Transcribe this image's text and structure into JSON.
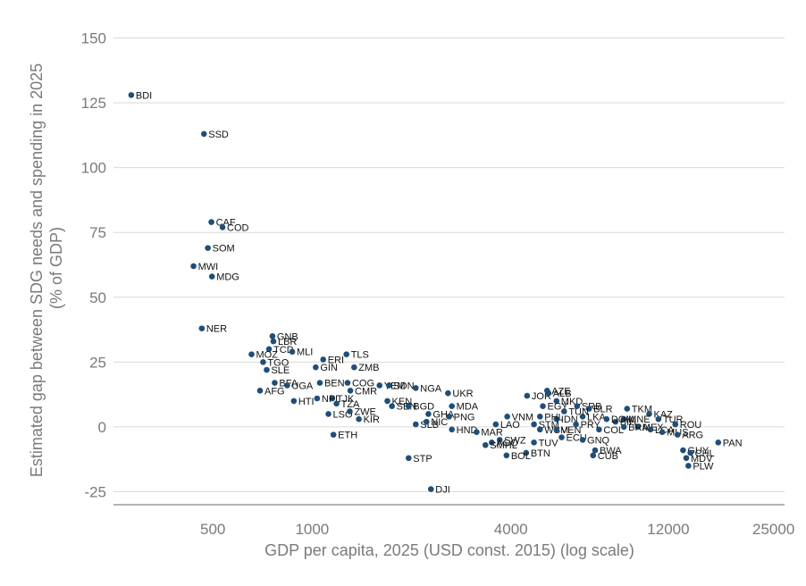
{
  "chart_data": {
    "type": "scatter",
    "x_scale": "log",
    "xlabel": "GDP per capita, 2025 (USD const. 2015) (log scale)",
    "ylabel_lines": [
      "Estimated gap between SDG needs and spending in 2025",
      "(% of GDP)"
    ],
    "xlim": [
      250,
      27000
    ],
    "ylim": [
      -30,
      155
    ],
    "x_ticks": [
      500,
      1000,
      4000,
      12000,
      25000
    ],
    "x_tick_labels": [
      "500",
      "1000",
      "4000",
      "12000",
      "25000"
    ],
    "y_ticks": [
      -25,
      0,
      25,
      50,
      75,
      100,
      125,
      150
    ],
    "y_tick_labels": [
      "-25",
      "0",
      "25",
      "50",
      "75",
      "100",
      "125",
      "150"
    ],
    "grid": "horizontal",
    "marker_color": "#1f4e79",
    "points": [
      {
        "label": "BDI",
        "x": 283,
        "y": 128
      },
      {
        "label": "SSD",
        "x": 470,
        "y": 113
      },
      {
        "label": "CAF",
        "x": 495,
        "y": 79
      },
      {
        "label": "COD",
        "x": 535,
        "y": 77
      },
      {
        "label": "SOM",
        "x": 483,
        "y": 69
      },
      {
        "label": "MWI",
        "x": 437,
        "y": 62
      },
      {
        "label": "MDG",
        "x": 497,
        "y": 58
      },
      {
        "label": "NER",
        "x": 463,
        "y": 38
      },
      {
        "label": "GNB",
        "x": 758,
        "y": 35
      },
      {
        "label": "LBR",
        "x": 763,
        "y": 33
      },
      {
        "label": "TCD",
        "x": 740,
        "y": 30
      },
      {
        "label": "MLI",
        "x": 870,
        "y": 29
      },
      {
        "label": "MOZ",
        "x": 655,
        "y": 28
      },
      {
        "label": "TGO",
        "x": 710,
        "y": 25
      },
      {
        "label": "ERI",
        "x": 1080,
        "y": 26
      },
      {
        "label": "TLS",
        "x": 1270,
        "y": 28
      },
      {
        "label": "GIN",
        "x": 1025,
        "y": 23
      },
      {
        "label": "SLE",
        "x": 728,
        "y": 22
      },
      {
        "label": "ZMB",
        "x": 1340,
        "y": 23
      },
      {
        "label": "BFA",
        "x": 770,
        "y": 17
      },
      {
        "label": "UGA",
        "x": 840,
        "y": 16
      },
      {
        "label": "BEN",
        "x": 1055,
        "y": 17
      },
      {
        "label": "COG",
        "x": 1280,
        "y": 17
      },
      {
        "label": "YEM",
        "x": 1600,
        "y": 16
      },
      {
        "label": "SDN",
        "x": 1710,
        "y": 16
      },
      {
        "label": "AFG",
        "x": 695,
        "y": 14
      },
      {
        "label": "CMR",
        "x": 1305,
        "y": 14
      },
      {
        "label": "TJK",
        "x": 1150,
        "y": 11
      },
      {
        "label": "HTI",
        "x": 880,
        "y": 10
      },
      {
        "label": "NPL",
        "x": 1035,
        "y": 11
      },
      {
        "label": "TZA",
        "x": 1185,
        "y": 9
      },
      {
        "label": "KEN",
        "x": 1690,
        "y": 10
      },
      {
        "label": "NGA",
        "x": 2060,
        "y": 15
      },
      {
        "label": "UKR",
        "x": 2580,
        "y": 13
      },
      {
        "label": "LSO",
        "x": 1120,
        "y": 5
      },
      {
        "label": "ZWE",
        "x": 1300,
        "y": 6
      },
      {
        "label": "KIR",
        "x": 1385,
        "y": 3
      },
      {
        "label": "SEN",
        "x": 1745,
        "y": 8
      },
      {
        "label": "BGD",
        "x": 1960,
        "y": 8
      },
      {
        "label": "MDA",
        "x": 2650,
        "y": 8
      },
      {
        "label": "GHA",
        "x": 2250,
        "y": 5
      },
      {
        "label": "PNG",
        "x": 2600,
        "y": 4
      },
      {
        "label": "SLB",
        "x": 2060,
        "y": 1
      },
      {
        "label": "NIC",
        "x": 2220,
        "y": 2
      },
      {
        "label": "HND",
        "x": 2650,
        "y": -1
      },
      {
        "label": "MAR",
        "x": 3150,
        "y": -2
      },
      {
        "label": "ETH",
        "x": 1160,
        "y": -3
      },
      {
        "label": "SWZ",
        "x": 3700,
        "y": -5
      },
      {
        "label": "AGO",
        "x": 3500,
        "y": -6
      },
      {
        "label": "SMHL",
        "x": 3350,
        "y": -7
      },
      {
        "label": "TUV",
        "x": 4700,
        "y": -6
      },
      {
        "label": "BTN",
        "x": 4450,
        "y": -10
      },
      {
        "label": "BOL",
        "x": 3880,
        "y": -11
      },
      {
        "label": "STP",
        "x": 1960,
        "y": -12
      },
      {
        "label": "DJI",
        "x": 2290,
        "y": -24
      },
      {
        "label": "JOR",
        "x": 4480,
        "y": 12
      },
      {
        "label": "AZE",
        "x": 5150,
        "y": 14
      },
      {
        "label": "ALB",
        "x": 5200,
        "y": 13
      },
      {
        "label": "MKD",
        "x": 5500,
        "y": 10
      },
      {
        "label": "SRB",
        "x": 6350,
        "y": 8
      },
      {
        "label": "BLR",
        "x": 6900,
        "y": 7
      },
      {
        "label": "TKM",
        "x": 9000,
        "y": 7
      },
      {
        "label": "KAZ",
        "x": 10500,
        "y": 5
      },
      {
        "label": "TUR",
        "x": 11200,
        "y": 3
      },
      {
        "label": "ROU",
        "x": 12600,
        "y": 1
      },
      {
        "label": "MNE",
        "x": 8800,
        "y": 3
      },
      {
        "label": "BIH",
        "x": 8300,
        "y": 2
      },
      {
        "label": "MEX",
        "x": 9700,
        "y": 0
      },
      {
        "label": "LCA",
        "x": 10600,
        "y": -1
      },
      {
        "label": "MUS",
        "x": 11500,
        "y": -2
      },
      {
        "label": "ARG",
        "x": 12800,
        "y": -3
      },
      {
        "label": "PAN",
        "x": 17000,
        "y": -6
      },
      {
        "label": "GUY",
        "x": 13300,
        "y": -9
      },
      {
        "label": "CHL",
        "x": 14000,
        "y": -10
      },
      {
        "label": "MDV",
        "x": 13600,
        "y": -12
      },
      {
        "label": "PLW",
        "x": 13800,
        "y": -15
      },
      {
        "label": "COL",
        "x": 7400,
        "y": -1
      },
      {
        "label": "IDN",
        "x": 5500,
        "y": 3
      },
      {
        "label": "PHL",
        "x": 4900,
        "y": 4
      },
      {
        "label": "VNM",
        "x": 3900,
        "y": 4
      },
      {
        "label": "LAO",
        "x": 3600,
        "y": 1
      },
      {
        "label": "STM",
        "x": 4700,
        "y": 1
      },
      {
        "label": "WSM",
        "x": 4900,
        "y": -1
      },
      {
        "label": "VEN",
        "x": 5500,
        "y": -1
      },
      {
        "label": "PRY",
        "x": 6300,
        "y": 1
      },
      {
        "label": "ECU",
        "x": 5700,
        "y": -4
      },
      {
        "label": "GNQ",
        "x": 6600,
        "y": -5
      },
      {
        "label": "BWA",
        "x": 7200,
        "y": -9
      },
      {
        "label": "CUB",
        "x": 7100,
        "y": -11
      },
      {
        "label": "LKA",
        "x": 6600,
        "y": 4
      },
      {
        "label": "EGY",
        "x": 5000,
        "y": 8
      },
      {
        "label": "TUN",
        "x": 5800,
        "y": 6
      },
      {
        "label": "DOM",
        "x": 7800,
        "y": 3
      },
      {
        "label": "BRA",
        "x": 8800,
        "y": 0
      }
    ]
  }
}
